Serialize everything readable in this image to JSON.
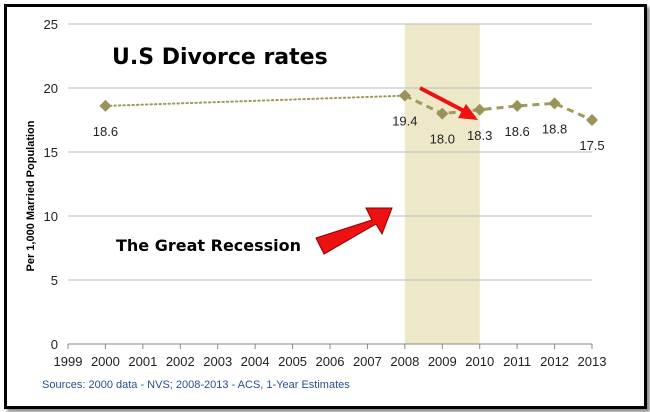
{
  "chart_data": {
    "type": "line",
    "title": "U.S Divorce rates",
    "ylabel": "Per 1,000 Married Population",
    "xlabel": "",
    "xlim": [
      1999,
      2013
    ],
    "ylim": [
      0,
      25
    ],
    "yticks": [
      0,
      5,
      10,
      15,
      20,
      25
    ],
    "xticks": [
      1999,
      2000,
      2001,
      2002,
      2003,
      2004,
      2005,
      2006,
      2007,
      2008,
      2009,
      2010,
      2011,
      2012,
      2013
    ],
    "grid": true,
    "series": [
      {
        "name": "",
        "x": [
          2000,
          2008
        ],
        "values": [
          18.6,
          19.4
        ],
        "style": "dotted"
      },
      {
        "name": "",
        "x": [
          2008,
          2009,
          2010,
          2011,
          2012,
          2013
        ],
        "values": [
          19.4,
          18.0,
          18.3,
          18.6,
          18.8,
          17.5
        ],
        "style": "dashed"
      }
    ],
    "data_labels": [
      {
        "x": 2000,
        "text": "18.6"
      },
      {
        "x": 2008,
        "text": "19.4"
      },
      {
        "x": 2009,
        "text": "18.0"
      },
      {
        "x": 2010,
        "text": "18.3"
      },
      {
        "x": 2011,
        "text": "18.6"
      },
      {
        "x": 2012,
        "text": "18.8"
      },
      {
        "x": 2013,
        "text": "17.5"
      }
    ],
    "shaded_region": {
      "x": [
        2008,
        2010
      ],
      "color": "#ece8c8"
    },
    "annotation": "The Great Recession",
    "source": "Sources: 2000 data - NVS; 2008-2013 - ACS, 1-Year Estimates",
    "colors": {
      "line": "#a09a5c",
      "marker": "#9b9259",
      "arrow": "#ee1111"
    }
  }
}
